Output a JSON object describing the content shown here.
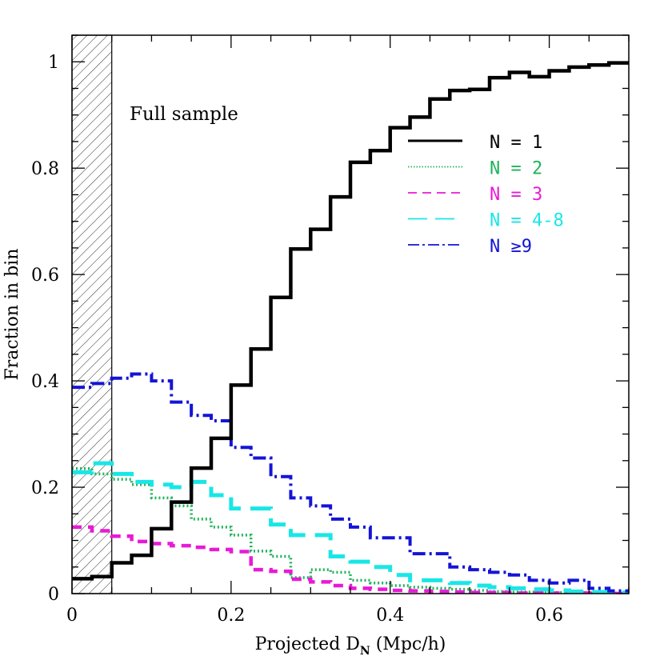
{
  "chart_data": {
    "type": "line",
    "step": true,
    "annotation": "Full sample",
    "xlabel_main": "Projected D",
    "xlabel_sub": "N",
    "xlabel_unit": " (Mpc/h)",
    "ylabel": "Fraction in bin",
    "xlim": [
      0,
      0.7
    ],
    "ylim": [
      0,
      1.05
    ],
    "xticks": [
      0,
      0.2,
      0.4,
      0.6
    ],
    "xtick_labels": [
      "0",
      "0.2",
      "0.4",
      "0.6"
    ],
    "yticks": [
      0,
      0.2,
      0.4,
      0.6,
      0.8,
      1
    ],
    "ytick_labels": [
      "0",
      "0.2",
      "0.4",
      "0.6",
      "0.8",
      "1"
    ],
    "excluded_region": [
      0,
      0.05
    ],
    "bin_edges": [
      0,
      0.025,
      0.05,
      0.075,
      0.1,
      0.125,
      0.15,
      0.175,
      0.2,
      0.225,
      0.25,
      0.275,
      0.3,
      0.325,
      0.35,
      0.375,
      0.4,
      0.425,
      0.45,
      0.475,
      0.5,
      0.525,
      0.55,
      0.575,
      0.6,
      0.625,
      0.65,
      0.675,
      0.7
    ],
    "series": [
      {
        "name": "N = 1",
        "color": "#000000",
        "style": "solid",
        "values": [
          0.028,
          0.032,
          0.058,
          0.072,
          0.122,
          0.172,
          0.236,
          0.292,
          0.392,
          0.46,
          0.557,
          0.648,
          0.685,
          0.746,
          0.811,
          0.833,
          0.876,
          0.896,
          0.93,
          0.946,
          0.948,
          0.97,
          0.98,
          0.972,
          0.983,
          0.99,
          0.994,
          0.998
        ]
      },
      {
        "name": "N = 2",
        "color": "#1fb35a",
        "style": "dotted",
        "values": [
          0.235,
          0.225,
          0.215,
          0.205,
          0.18,
          0.165,
          0.14,
          0.125,
          0.11,
          0.08,
          0.07,
          0.03,
          0.045,
          0.04,
          0.025,
          0.02,
          0.015,
          0.012,
          0.01,
          0.008,
          0.006,
          0.004,
          0.003,
          0.003,
          0.002,
          0.002,
          0.001,
          0.001
        ]
      },
      {
        "name": "N = 3",
        "color": "#e81ad6",
        "style": "dashed",
        "values": [
          0.125,
          0.118,
          0.108,
          0.098,
          0.094,
          0.09,
          0.087,
          0.083,
          0.079,
          0.045,
          0.042,
          0.027,
          0.022,
          0.015,
          0.01,
          0.008,
          0.006,
          0.005,
          0.004,
          0.003,
          0.002,
          0.002,
          0.001,
          0.001,
          0.001,
          0.001,
          0.001,
          0.0
        ]
      },
      {
        "name": "N = 4-8",
        "color": "#19e6e6",
        "style": "longdash",
        "values": [
          0.228,
          0.245,
          0.225,
          0.21,
          0.205,
          0.2,
          0.21,
          0.185,
          0.16,
          0.16,
          0.13,
          0.11,
          0.11,
          0.07,
          0.06,
          0.05,
          0.035,
          0.025,
          0.025,
          0.02,
          0.015,
          0.012,
          0.01,
          0.008,
          0.006,
          0.004,
          0.003,
          0.002
        ]
      },
      {
        "name": "N ≥9",
        "color": "#1414d6",
        "style": "dashdot",
        "values": [
          0.388,
          0.395,
          0.405,
          0.413,
          0.4,
          0.36,
          0.335,
          0.325,
          0.275,
          0.255,
          0.22,
          0.18,
          0.165,
          0.14,
          0.125,
          0.105,
          0.105,
          0.075,
          0.075,
          0.05,
          0.045,
          0.04,
          0.035,
          0.025,
          0.02,
          0.025,
          0.01,
          0.005
        ]
      }
    ]
  }
}
